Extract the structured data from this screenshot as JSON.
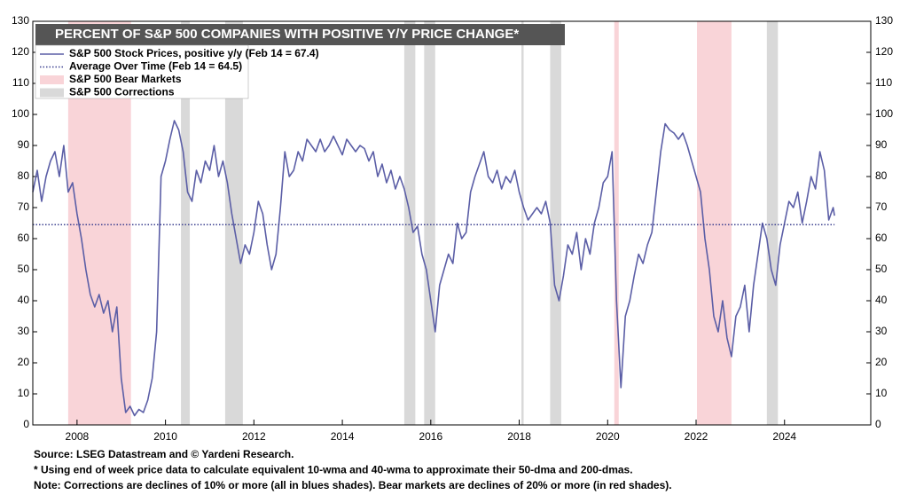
{
  "chart_data": {
    "type": "line",
    "title": "PERCENT OF S&P 500 COMPANIES WITH POSITIVE Y/Y PRICE CHANGE*",
    "xlim": [
      2007.0,
      2025.95
    ],
    "xticks": [
      2008,
      2010,
      2012,
      2014,
      2016,
      2018,
      2020,
      2022,
      2024
    ],
    "ylim": [
      0,
      130
    ],
    "yticks": [
      0,
      10,
      20,
      30,
      40,
      50,
      60,
      70,
      80,
      90,
      100,
      110,
      120,
      130
    ],
    "y2lim": [
      0,
      130
    ],
    "y2ticks": [
      0,
      10,
      20,
      30,
      40,
      50,
      60,
      70,
      80,
      90,
      100,
      110,
      120,
      130
    ],
    "legend": "top-left",
    "series": [
      {
        "name": "S&P 500 Stock Prices, positive y/y (Feb 14 = 67.4)",
        "color": "#5b5ea6",
        "style": "solid",
        "x": [
          2007.0,
          2007.1,
          2007.2,
          2007.3,
          2007.4,
          2007.5,
          2007.6,
          2007.7,
          2007.8,
          2007.9,
          2008.0,
          2008.1,
          2008.2,
          2008.3,
          2008.4,
          2008.5,
          2008.6,
          2008.7,
          2008.8,
          2008.9,
          2009.0,
          2009.1,
          2009.2,
          2009.3,
          2009.4,
          2009.5,
          2009.6,
          2009.7,
          2009.8,
          2009.9,
          2010.0,
          2010.1,
          2010.2,
          2010.3,
          2010.4,
          2010.5,
          2010.6,
          2010.7,
          2010.8,
          2010.9,
          2011.0,
          2011.1,
          2011.2,
          2011.3,
          2011.4,
          2011.5,
          2011.6,
          2011.7,
          2011.8,
          2011.9,
          2012.0,
          2012.1,
          2012.2,
          2012.3,
          2012.4,
          2012.5,
          2012.6,
          2012.7,
          2012.8,
          2012.9,
          2013.0,
          2013.1,
          2013.2,
          2013.3,
          2013.4,
          2013.5,
          2013.6,
          2013.7,
          2013.8,
          2013.9,
          2014.0,
          2014.1,
          2014.2,
          2014.3,
          2014.4,
          2014.5,
          2014.6,
          2014.7,
          2014.8,
          2014.9,
          2015.0,
          2015.1,
          2015.2,
          2015.3,
          2015.4,
          2015.5,
          2015.6,
          2015.7,
          2015.8,
          2015.9,
          2016.0,
          2016.1,
          2016.2,
          2016.3,
          2016.4,
          2016.5,
          2016.6,
          2016.7,
          2016.8,
          2016.9,
          2017.0,
          2017.1,
          2017.2,
          2017.3,
          2017.4,
          2017.5,
          2017.6,
          2017.7,
          2017.8,
          2017.9,
          2018.0,
          2018.1,
          2018.2,
          2018.3,
          2018.4,
          2018.5,
          2018.6,
          2018.7,
          2018.8,
          2018.9,
          2019.0,
          2019.1,
          2019.2,
          2019.3,
          2019.4,
          2019.5,
          2019.6,
          2019.7,
          2019.8,
          2019.9,
          2020.0,
          2020.1,
          2020.2,
          2020.3,
          2020.4,
          2020.5,
          2020.6,
          2020.7,
          2020.8,
          2020.9,
          2021.0,
          2021.1,
          2021.2,
          2021.3,
          2021.4,
          2021.5,
          2021.6,
          2021.7,
          2021.8,
          2021.9,
          2022.0,
          2022.1,
          2022.2,
          2022.3,
          2022.4,
          2022.5,
          2022.6,
          2022.7,
          2022.8,
          2022.9,
          2023.0,
          2023.1,
          2023.2,
          2023.3,
          2023.4,
          2023.5,
          2023.6,
          2023.7,
          2023.8,
          2023.9,
          2024.0,
          2024.1,
          2024.2,
          2024.3,
          2024.4,
          2024.5,
          2024.6,
          2024.7,
          2024.8,
          2024.9,
          2025.0,
          2025.1,
          2025.13
        ],
        "values": [
          75,
          82,
          72,
          80,
          85,
          88,
          80,
          90,
          75,
          78,
          68,
          60,
          50,
          42,
          38,
          42,
          36,
          40,
          30,
          38,
          15,
          4,
          6,
          3,
          5,
          4,
          8,
          15,
          30,
          80,
          85,
          92,
          98,
          95,
          88,
          75,
          72,
          82,
          78,
          85,
          82,
          90,
          80,
          85,
          78,
          68,
          60,
          52,
          58,
          55,
          62,
          72,
          68,
          58,
          50,
          55,
          70,
          88,
          80,
          82,
          88,
          85,
          92,
          90,
          88,
          92,
          88,
          90,
          93,
          90,
          87,
          92,
          90,
          88,
          90,
          89,
          85,
          88,
          80,
          84,
          78,
          82,
          76,
          80,
          76,
          70,
          62,
          64,
          55,
          50,
          40,
          30,
          45,
          50,
          55,
          52,
          65,
          60,
          62,
          75,
          80,
          84,
          88,
          80,
          78,
          82,
          76,
          80,
          78,
          82,
          75,
          70,
          66,
          68,
          70,
          68,
          72,
          65,
          45,
          40,
          48,
          58,
          55,
          62,
          50,
          60,
          55,
          65,
          70,
          78,
          80,
          88,
          40,
          12,
          35,
          40,
          48,
          55,
          52,
          58,
          62,
          75,
          88,
          97,
          95,
          94,
          92,
          94,
          90,
          85,
          80,
          75,
          60,
          50,
          35,
          30,
          40,
          28,
          22,
          35,
          38,
          45,
          30,
          45,
          55,
          65,
          60,
          50,
          45,
          58,
          65,
          72,
          70,
          75,
          65,
          72,
          80,
          76,
          88,
          82,
          66,
          70,
          67.4
        ]
      },
      {
        "name": "Average Over Time (Feb 14 = 64.5)",
        "color": "#3b3f8f",
        "style": "dotted",
        "x": [
          2007.0,
          2025.13
        ],
        "values": [
          64.5,
          64.5
        ]
      }
    ],
    "bands": [
      {
        "name": "S&P 500 Bear Markets",
        "color": "#f9d4d8",
        "ranges": [
          [
            2007.8,
            2009.22
          ],
          [
            2020.15,
            2020.25
          ],
          [
            2022.02,
            2022.8
          ]
        ]
      },
      {
        "name": "S&P 500 Corrections",
        "color": "#d9d9d9",
        "ranges": [
          [
            2010.35,
            2010.55
          ],
          [
            2011.35,
            2011.75
          ],
          [
            2015.4,
            2015.65
          ],
          [
            2015.85,
            2016.1
          ],
          [
            2018.05,
            2018.1
          ],
          [
            2018.7,
            2018.95
          ],
          [
            2023.6,
            2023.85
          ]
        ]
      }
    ],
    "notes": [
      "Source: LSEG Datastream and © Yardeni Research.",
      "* Using end of week price data to calculate equivalent 10-wma and 40-wma to approximate their 50-dma and 200-dmas.",
      "Note: Corrections are declines of 10% or more (all in blues shades). Bear markets are declines of 20% or more (in red shades)."
    ]
  }
}
